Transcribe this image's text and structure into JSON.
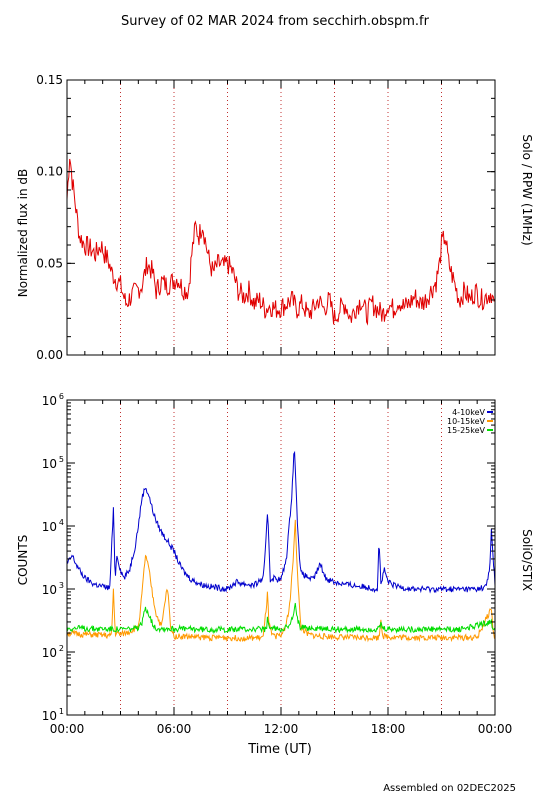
{
  "title": "Survey of 02 MAR 2024 from secchirh.obspm.fr",
  "footer": "Assembled on 02DEC2025",
  "colors": {
    "background": "#ffffff",
    "axes": "#000000",
    "guides": "#c03030",
    "rpw": "#e00000",
    "stix_4_10": "#0000cc",
    "stix_10_15": "#ff9900",
    "stix_15_25": "#00dd00"
  },
  "chart_data": [
    {
      "type": "line",
      "ylabel": "Normalized flux in dB",
      "side_label": "Solo / RPW (1MHz)",
      "ylim": [
        0.0,
        0.15
      ],
      "yticks": [
        {
          "value": 0.0,
          "label": "0.00"
        },
        {
          "value": 0.05,
          "label": "0.05"
        },
        {
          "value": 0.1,
          "label": "0.10"
        },
        {
          "value": 0.15,
          "label": "0.15"
        }
      ],
      "xlim": [
        0,
        24
      ],
      "vertical_guides_hours": [
        3,
        6,
        9,
        12,
        15,
        18,
        21
      ],
      "series": [
        {
          "color": "#e00000",
          "x": [
            0.0,
            0.15,
            0.3,
            0.5,
            0.7,
            1.0,
            1.3,
            1.6,
            1.9,
            2.1,
            2.3,
            2.5,
            2.7,
            3.0,
            3.3,
            3.6,
            3.9,
            4.2,
            4.5,
            4.8,
            5.0,
            5.3,
            5.6,
            5.9,
            6.2,
            6.5,
            6.8,
            7.0,
            7.2,
            7.4,
            7.6,
            7.8,
            8.0,
            8.2,
            8.5,
            8.8,
            9.0,
            9.3,
            9.6,
            9.9,
            10.2,
            10.5,
            10.8,
            11.1,
            11.4,
            11.7,
            12.0,
            12.3,
            12.6,
            12.9,
            13.2,
            13.5,
            13.8,
            14.1,
            14.4,
            14.7,
            15.0,
            15.3,
            15.6,
            15.9,
            16.2,
            16.5,
            16.8,
            17.1,
            17.4,
            17.7,
            18.0,
            18.3,
            18.6,
            18.9,
            19.2,
            19.5,
            19.8,
            20.1,
            20.4,
            20.7,
            20.9,
            21.0,
            21.2,
            21.4,
            21.7,
            22.0,
            22.3,
            22.6,
            22.9,
            23.2,
            23.5,
            23.8,
            24.0
          ],
          "values": [
            0.085,
            0.11,
            0.095,
            0.08,
            0.065,
            0.06,
            0.058,
            0.055,
            0.06,
            0.055,
            0.052,
            0.045,
            0.042,
            0.038,
            0.028,
            0.032,
            0.035,
            0.038,
            0.05,
            0.045,
            0.035,
            0.04,
            0.038,
            0.04,
            0.042,
            0.036,
            0.035,
            0.055,
            0.07,
            0.065,
            0.072,
            0.06,
            0.05,
            0.045,
            0.05,
            0.048,
            0.05,
            0.045,
            0.035,
            0.032,
            0.035,
            0.028,
            0.03,
            0.025,
            0.027,
            0.025,
            0.026,
            0.028,
            0.03,
            0.025,
            0.028,
            0.022,
            0.025,
            0.03,
            0.025,
            0.03,
            0.02,
            0.025,
            0.028,
            0.02,
            0.026,
            0.03,
            0.022,
            0.028,
            0.025,
            0.022,
            0.028,
            0.025,
            0.03,
            0.026,
            0.028,
            0.032,
            0.028,
            0.03,
            0.035,
            0.04,
            0.05,
            0.06,
            0.065,
            0.05,
            0.04,
            0.03,
            0.035,
            0.03,
            0.035,
            0.03,
            0.032,
            0.034,
            0.025
          ]
        }
      ]
    },
    {
      "type": "line",
      "ylabel": "COUNTS",
      "side_label": "SoliO/STIX",
      "xlabel": "Time (UT)",
      "yscale": "log",
      "ylim": [
        10,
        1000000
      ],
      "yticks": [
        {
          "value": 10,
          "base": "10",
          "exp": "1"
        },
        {
          "value": 100,
          "base": "10",
          "exp": "2"
        },
        {
          "value": 1000,
          "base": "10",
          "exp": "3"
        },
        {
          "value": 10000,
          "base": "10",
          "exp": "4"
        },
        {
          "value": 100000,
          "base": "10",
          "exp": "5"
        },
        {
          "value": 1000000,
          "base": "10",
          "exp": "6"
        }
      ],
      "xlim": [
        0,
        24
      ],
      "xticks": [
        {
          "value": 0,
          "label": "00:00"
        },
        {
          "value": 6,
          "label": "06:00"
        },
        {
          "value": 12,
          "label": "12:00"
        },
        {
          "value": 18,
          "label": "18:00"
        },
        {
          "value": 24,
          "label": "00:00"
        }
      ],
      "vertical_guides_hours": [
        3,
        6,
        9,
        12,
        15,
        18,
        21
      ],
      "legend_position": "top-right",
      "series": [
        {
          "name": "4-10keV",
          "color": "#0000cc",
          "x": [
            0.0,
            0.3,
            0.5,
            0.8,
            1.0,
            1.5,
            2.0,
            2.4,
            2.6,
            2.7,
            2.8,
            3.0,
            3.2,
            3.5,
            3.8,
            4.0,
            4.2,
            4.4,
            4.6,
            4.8,
            5.0,
            5.3,
            5.6,
            6.0,
            6.3,
            6.6,
            7.0,
            7.5,
            8.0,
            8.5,
            9.0,
            9.5,
            10.0,
            10.5,
            11.0,
            11.1,
            11.25,
            11.4,
            11.6,
            12.0,
            12.3,
            12.6,
            12.75,
            12.9,
            13.1,
            13.4,
            13.8,
            14.2,
            14.5,
            15.0,
            15.5,
            16.0,
            16.5,
            17.0,
            17.4,
            17.5,
            17.6,
            17.8,
            18.0,
            18.2,
            18.5,
            19.0,
            19.5,
            20.0,
            20.5,
            21.0,
            21.5,
            22.0,
            22.5,
            23.0,
            23.5,
            23.7,
            23.8,
            23.9,
            24.0
          ],
          "values": [
            2500,
            3400,
            2500,
            1800,
            1500,
            1200,
            1100,
            1050,
            18000,
            1500,
            3500,
            2000,
            1500,
            2000,
            4500,
            10000,
            28000,
            42000,
            30000,
            18000,
            12000,
            8000,
            6000,
            4000,
            2500,
            1800,
            1400,
            1200,
            1100,
            1050,
            1000,
            1300,
            1200,
            1150,
            1500,
            3000,
            18000,
            1400,
            1500,
            1400,
            3000,
            30000,
            190000,
            15000,
            1800,
            1600,
            1400,
            2500,
            1500,
            1300,
            1200,
            1150,
            1100,
            1050,
            1000,
            6000,
            1200,
            2000,
            1300,
            1200,
            1100,
            1050,
            1000,
            1000,
            1000,
            1000,
            1000,
            1000,
            1000,
            1000,
            1100,
            2000,
            9000,
            3000,
            1200
          ]
        },
        {
          "name": "10-15keV",
          "color": "#ff9900",
          "x": [
            0.0,
            1.0,
            2.0,
            2.5,
            2.6,
            2.7,
            3.0,
            3.5,
            4.0,
            4.2,
            4.4,
            4.6,
            4.8,
            5.0,
            5.3,
            5.6,
            5.7,
            5.8,
            6.0,
            7.0,
            8.0,
            9.0,
            10.0,
            11.0,
            11.2,
            11.25,
            11.3,
            11.5,
            12.0,
            12.3,
            12.5,
            12.7,
            12.8,
            12.9,
            13.1,
            13.5,
            14.0,
            15.0,
            16.0,
            17.0,
            17.5,
            17.6,
            17.7,
            18.0,
            19.0,
            20.0,
            21.0,
            22.0,
            23.0,
            23.8,
            23.9,
            24.0
          ],
          "values": [
            200,
            190,
            185,
            180,
            1000,
            200,
            190,
            210,
            250,
            800,
            3500,
            2000,
            800,
            400,
            250,
            1000,
            700,
            250,
            180,
            175,
            170,
            170,
            165,
            170,
            600,
            1000,
            300,
            180,
            180,
            280,
            600,
            3500,
            12000,
            2500,
            250,
            190,
            180,
            175,
            170,
            170,
            170,
            350,
            180,
            175,
            170,
            170,
            170,
            170,
            170,
            500,
            200,
            170
          ]
        },
        {
          "name": "15-25keV",
          "color": "#00dd00",
          "x": [
            0.0,
            2.0,
            3.0,
            4.0,
            4.2,
            4.4,
            4.6,
            4.8,
            5.0,
            6.0,
            8.0,
            10.0,
            11.2,
            11.25,
            11.3,
            12.0,
            12.5,
            12.7,
            12.8,
            12.9,
            13.1,
            14.0,
            16.0,
            17.5,
            17.6,
            17.7,
            18.0,
            20.0,
            22.0,
            23.8,
            23.9,
            24.0
          ],
          "values": [
            240,
            235,
            230,
            235,
            280,
            520,
            400,
            280,
            240,
            235,
            230,
            230,
            230,
            380,
            240,
            235,
            260,
            400,
            550,
            350,
            245,
            235,
            230,
            230,
            280,
            235,
            230,
            230,
            230,
            300,
            240,
            235
          ]
        }
      ]
    }
  ]
}
